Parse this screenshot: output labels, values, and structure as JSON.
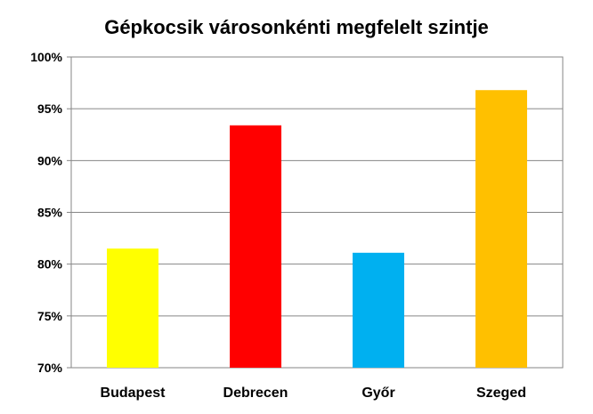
{
  "chart_data": {
    "type": "bar",
    "title": "Gépkocsik városonkénti megfelelt szintje",
    "xlabel": "",
    "ylabel": "",
    "categories": [
      "Budapest",
      "Debrecen",
      "Győr",
      "Szeged"
    ],
    "values": [
      81.5,
      93.4,
      81.1,
      96.8
    ],
    "colors": [
      "#ffff00",
      "#ff0000",
      "#00b0f0",
      "#ffc000"
    ],
    "ylim": [
      70,
      100
    ],
    "yticks": [
      70,
      75,
      80,
      85,
      90,
      95,
      100
    ],
    "ytick_labels": [
      "70%",
      "75%",
      "80%",
      "85%",
      "90%",
      "95%",
      "100%"
    ],
    "grid": true,
    "legend": "none"
  }
}
